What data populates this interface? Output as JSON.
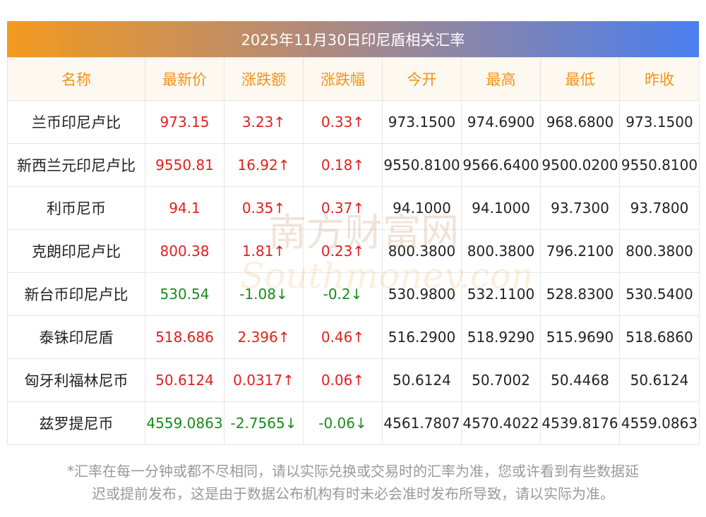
{
  "title": "2025年11月30日印尼盾相关汇率",
  "columns": [
    "名称",
    "最新价",
    "涨跌额",
    "涨跌幅",
    "今开",
    "最高",
    "最低",
    "昨收"
  ],
  "rows": [
    {
      "name": "兰币印尼卢比",
      "latest": "973.15",
      "change": "3.23↑",
      "pct": "0.33↑",
      "open": "973.1500",
      "high": "974.6900",
      "low": "968.6800",
      "prev": "973.1500",
      "dir": "up"
    },
    {
      "name": "新西兰元印尼卢比",
      "latest": "9550.81",
      "change": "16.92↑",
      "pct": "0.18↑",
      "open": "9550.8100",
      "high": "9566.6400",
      "low": "9500.0200",
      "prev": "9550.8100",
      "dir": "up"
    },
    {
      "name": "利币尼币",
      "latest": "94.1",
      "change": "0.35↑",
      "pct": "0.37↑",
      "open": "94.1000",
      "high": "94.1000",
      "low": "93.7300",
      "prev": "93.7800",
      "dir": "up"
    },
    {
      "name": "克朗印尼卢比",
      "latest": "800.38",
      "change": "1.81↑",
      "pct": "0.23↑",
      "open": "800.3800",
      "high": "800.3800",
      "low": "796.2100",
      "prev": "800.3800",
      "dir": "up"
    },
    {
      "name": "新台币印尼卢比",
      "latest": "530.54",
      "change": "-1.08↓",
      "pct": "-0.2↓",
      "open": "530.9800",
      "high": "532.1100",
      "low": "528.8300",
      "prev": "530.5400",
      "dir": "down"
    },
    {
      "name": "泰铢印尼盾",
      "latest": "518.686",
      "change": "2.396↑",
      "pct": "0.46↑",
      "open": "516.2900",
      "high": "518.9290",
      "low": "515.9690",
      "prev": "518.6860",
      "dir": "up"
    },
    {
      "name": "匈牙利福林尼币",
      "latest": "50.6124",
      "change": "0.0317↑",
      "pct": "0.06↑",
      "open": "50.6124",
      "high": "50.7002",
      "low": "50.4468",
      "prev": "50.6124",
      "dir": "up"
    },
    {
      "name": "兹罗提尼币",
      "latest": "4559.0863",
      "change": "-2.7565↓",
      "pct": "-0.06↓",
      "open": "4561.7807",
      "high": "4570.4022",
      "low": "4539.8176",
      "prev": "4559.0863",
      "dir": "down"
    }
  ],
  "watermark": {
    "cn": "南方财富网",
    "en": "Southmoney.com"
  },
  "footnote": [
    "*汇率在每一分钟或都不尽相同，请以实际兑换或交易时的汇率为准，您或许看到有些数据延",
    "迟或提前发布，这是由于数据公布机构有时未必会准时发布所导致，请以实际为准。"
  ],
  "colors": {
    "up": "#e0201f",
    "down": "#1a8a1a",
    "header_text": "#f09419"
  }
}
